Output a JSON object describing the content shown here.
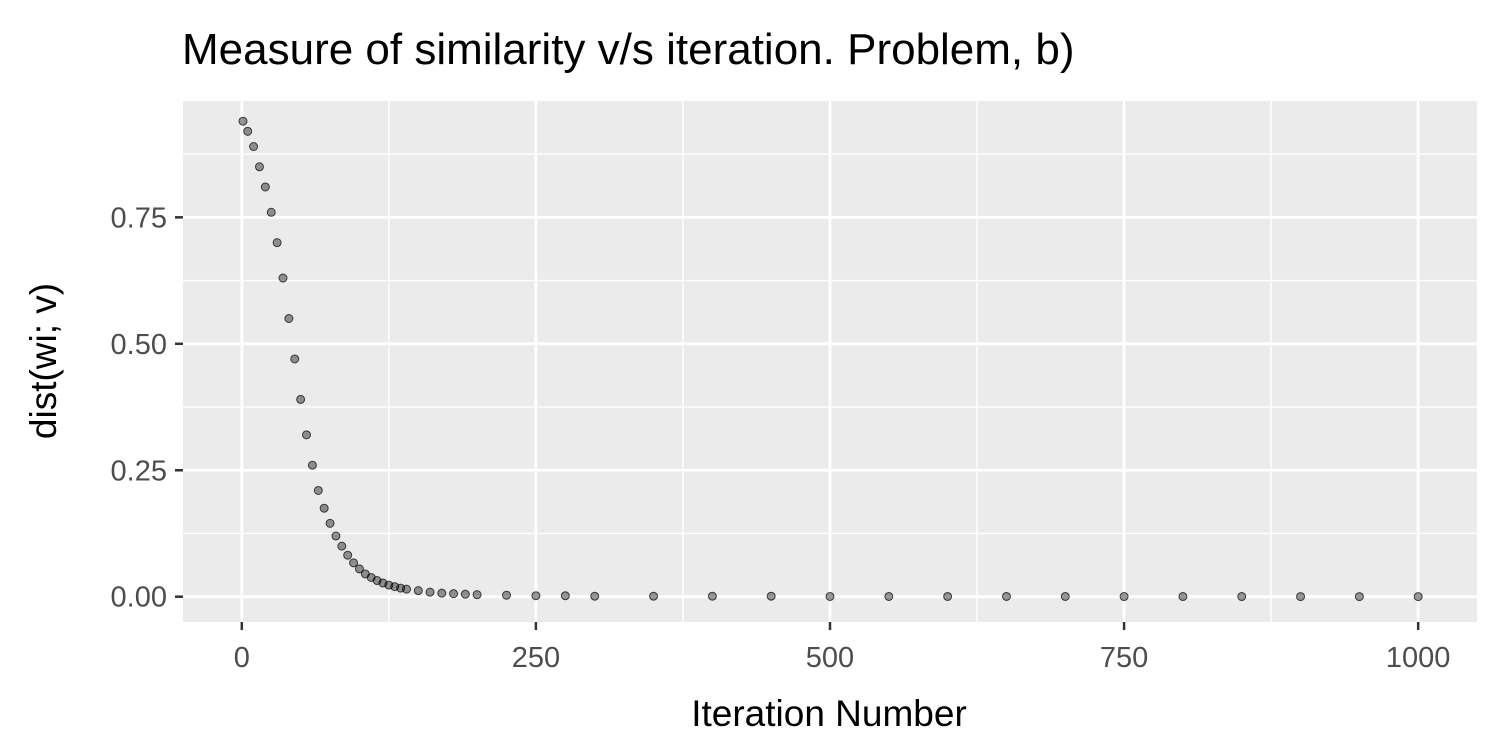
{
  "chart_data": {
    "type": "scatter",
    "title": "Measure of similarity v/s iteration. Problem, b)",
    "xlabel": "Iteration Number",
    "ylabel": "dist(wi; v)",
    "xlim": [
      -50,
      1050
    ],
    "ylim": [
      -0.05,
      0.98
    ],
    "x_ticks": [
      0,
      250,
      500,
      750,
      1000
    ],
    "x_tick_labels": [
      "0",
      "250",
      "500",
      "750",
      "1000"
    ],
    "y_ticks": [
      0,
      0.25,
      0.5,
      0.75
    ],
    "y_tick_labels": [
      "0.00",
      "0.25",
      "0.50",
      "0.75"
    ],
    "grid": true,
    "panel_background": "#ebebeb",
    "point_color": "#000000",
    "point_opacity": 0.4,
    "series": [
      {
        "x": [
          1,
          5,
          10,
          15,
          20,
          25,
          30,
          35,
          40,
          45,
          50,
          55,
          60,
          65,
          70,
          75,
          80,
          85,
          90,
          95,
          100,
          105,
          110,
          115,
          120,
          125,
          130,
          135,
          140,
          150,
          160,
          170,
          180,
          190,
          200,
          225,
          250,
          275,
          300,
          350,
          400,
          450,
          500,
          550,
          600,
          650,
          700,
          750,
          800,
          850,
          900,
          950,
          1000
        ],
        "values": [
          0.94,
          0.92,
          0.89,
          0.85,
          0.81,
          0.76,
          0.7,
          0.63,
          0.55,
          0.47,
          0.39,
          0.32,
          0.26,
          0.21,
          0.175,
          0.145,
          0.12,
          0.1,
          0.082,
          0.067,
          0.055,
          0.045,
          0.038,
          0.032,
          0.027,
          0.023,
          0.02,
          0.017,
          0.015,
          0.012,
          0.009,
          0.007,
          0.006,
          0.005,
          0.004,
          0.003,
          0.002,
          0.002,
          0.001,
          0.001,
          0.001,
          0.001,
          0.0005,
          0.0005,
          0.0005,
          0.0005,
          0.0005,
          0.0003,
          0.0003,
          0.0003,
          0.0002,
          0.0002,
          0.0002
        ]
      }
    ]
  }
}
